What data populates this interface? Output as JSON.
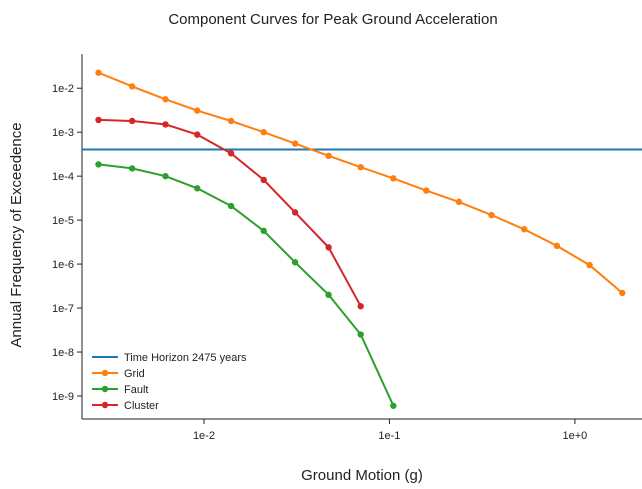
{
  "chart_data": {
    "type": "line",
    "title": "Component Curves for Peak Ground Acceleration",
    "xlabel": "Ground Motion (g)",
    "ylabel": "Annual Frequency of Exceedence",
    "x_scale": "log",
    "y_scale": "log",
    "xlim": [
      0.0022,
      2.3
    ],
    "ylim": [
      3e-10,
      0.06
    ],
    "x_ticks": [
      {
        "value": 0.01,
        "label": "1e-2"
      },
      {
        "value": 0.1,
        "label": "1e-1"
      },
      {
        "value": 1,
        "label": "1e+0"
      }
    ],
    "y_ticks": [
      {
        "value": 0.01,
        "label": "1e-2"
      },
      {
        "value": 0.001,
        "label": "1e-3"
      },
      {
        "value": 0.0001,
        "label": "1e-4"
      },
      {
        "value": 1e-05,
        "label": "1e-5"
      },
      {
        "value": 1e-06,
        "label": "1e-6"
      },
      {
        "value": 1e-07,
        "label": "1e-7"
      },
      {
        "value": 1e-08,
        "label": "1e-8"
      },
      {
        "value": 1e-09,
        "label": "1e-9"
      }
    ],
    "grid": false,
    "legend_position": "lower-left",
    "horizontal_lines": [
      {
        "name": "Time Horizon 2475 years",
        "y": 0.000404,
        "color": "#1f77b4"
      }
    ],
    "series": [
      {
        "name": "Grid",
        "color": "#ff7f0e",
        "x": [
          0.0027,
          0.0041,
          0.0062,
          0.0092,
          0.014,
          0.021,
          0.031,
          0.047,
          0.07,
          0.105,
          0.158,
          0.237,
          0.355,
          0.533,
          0.8,
          1.2,
          1.8
        ],
        "y": [
          0.0225,
          0.011,
          0.0056,
          0.0031,
          0.0018,
          0.001,
          0.00055,
          0.00029,
          0.00016,
          8.9e-05,
          4.7e-05,
          2.6e-05,
          1.3e-05,
          6.2e-06,
          2.6e-06,
          9.5e-07,
          2.2e-07
        ]
      },
      {
        "name": "Fault",
        "color": "#2ca02c",
        "x": [
          0.0027,
          0.0041,
          0.0062,
          0.0092,
          0.014,
          0.021,
          0.031,
          0.047,
          0.07,
          0.105
        ],
        "y": [
          0.000185,
          0.00015,
          0.0001,
          5.3e-05,
          2.1e-05,
          5.7e-06,
          1.1e-06,
          2e-07,
          2.5e-08,
          6e-10
        ]
      },
      {
        "name": "Cluster",
        "color": "#d62728",
        "x": [
          0.0027,
          0.0041,
          0.0062,
          0.0092,
          0.014,
          0.021,
          0.031,
          0.047,
          0.07
        ],
        "y": [
          0.0019,
          0.0018,
          0.0015,
          0.00088,
          0.00033,
          8.2e-05,
          1.5e-05,
          2.4e-06,
          1.1e-07
        ]
      }
    ]
  }
}
